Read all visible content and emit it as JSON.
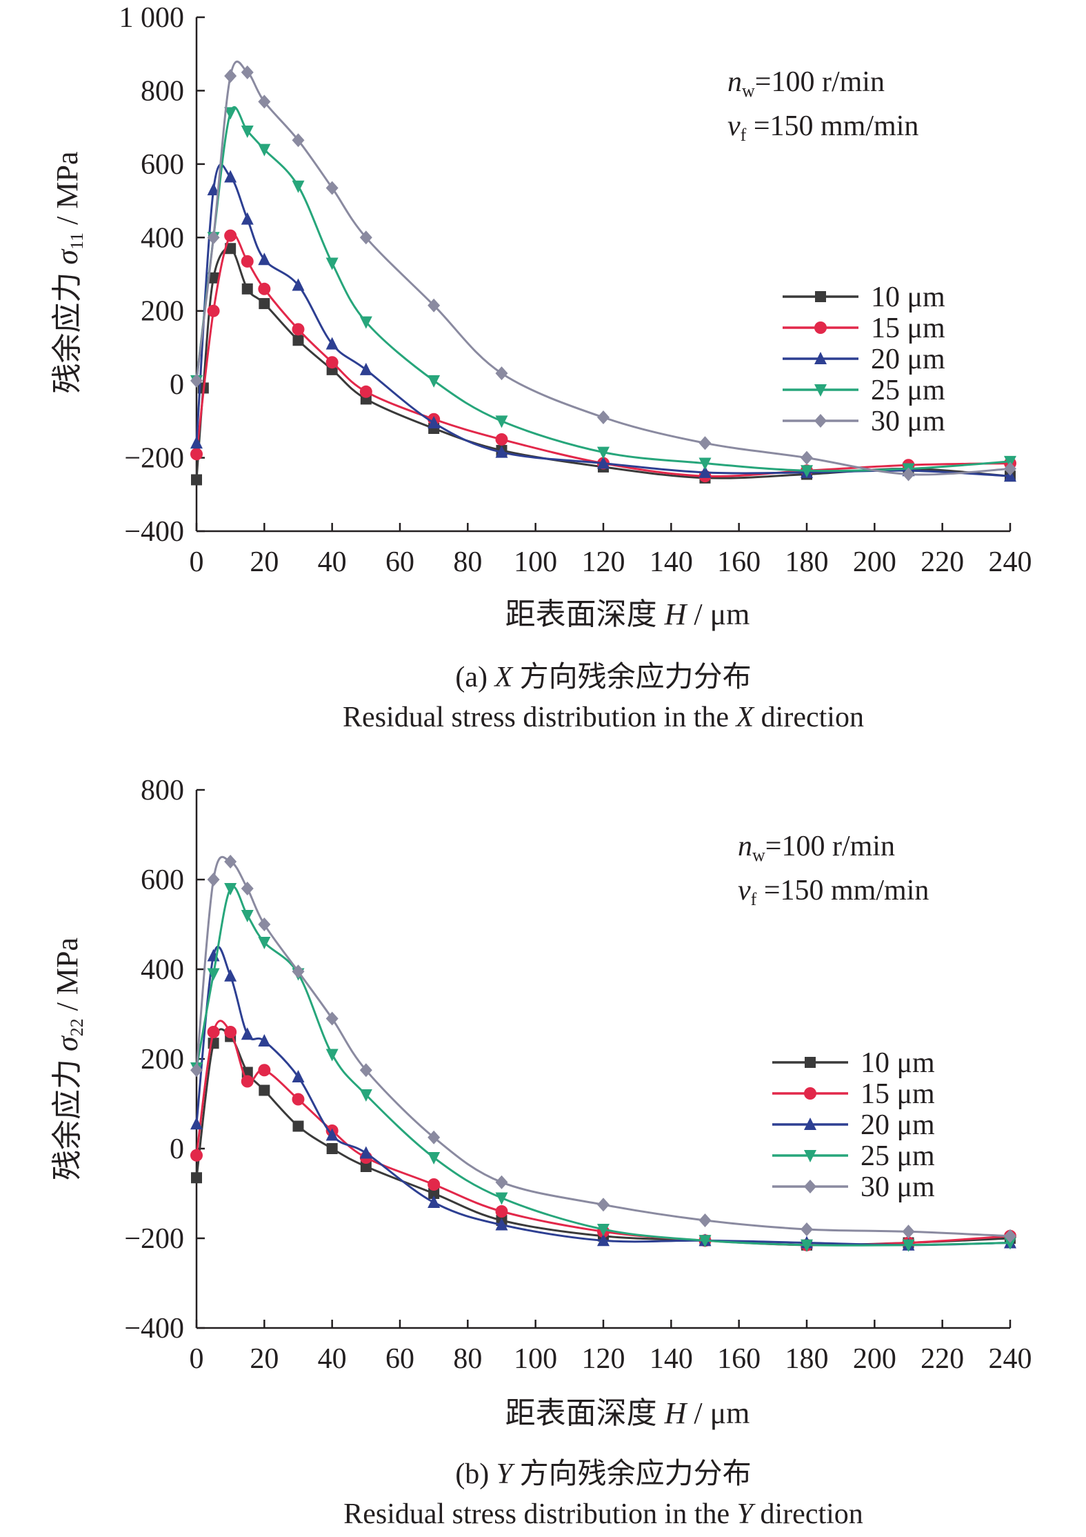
{
  "chart_data": [
    {
      "type": "line",
      "xlabel": "距表面深度",
      "xsymbol": "H",
      "xunit": " / μm",
      "ylabel": "残余应力",
      "ysymbol": "σ",
      "ysub": "11",
      "yunit": " / MPa",
      "xlim": [
        0,
        240
      ],
      "ylim": [
        -400,
        1000
      ],
      "xticks": [
        "0",
        "20",
        "40",
        "60",
        "80",
        "100",
        "120",
        "140",
        "160",
        "180",
        "200",
        "220",
        "240"
      ],
      "yticks": [
        "−400",
        "−200",
        "0",
        "200",
        "400",
        "600",
        "800",
        "1 000"
      ],
      "params": {
        "line1_sym": "n",
        "line1_sub": "w",
        "line1_val": "=100 r/min",
        "line2_sym": "v",
        "line2_sub": "f",
        "line2_val": " =150 mm/min"
      },
      "caption_cn_prefix": "(a) ",
      "caption_cn_sym": "X",
      "caption_cn_rest": " 方向残余应力分布",
      "caption_en_prefix": "Residual stress distribution in the ",
      "caption_en_sym": "X",
      "caption_en_suffix": " direction",
      "series": [
        {
          "name": "10 μm",
          "color": "#3a3a3a",
          "marker": "square",
          "x": [
            0,
            2,
            5,
            10,
            15,
            20,
            30,
            40,
            50,
            70,
            90,
            120,
            150,
            180,
            210,
            240
          ],
          "y": [
            -260,
            -10,
            290,
            370,
            260,
            220,
            120,
            40,
            -40,
            -120,
            -180,
            -225,
            -255,
            -245,
            -230,
            -250
          ]
        },
        {
          "name": "15 μm",
          "color": "#e2284a",
          "marker": "circle",
          "x": [
            0,
            5,
            10,
            15,
            20,
            30,
            40,
            50,
            70,
            90,
            120,
            150,
            180,
            210,
            240
          ],
          "y": [
            -190,
            200,
            405,
            335,
            260,
            150,
            60,
            -20,
            -95,
            -150,
            -215,
            -250,
            -235,
            -220,
            -215
          ]
        },
        {
          "name": "20 μm",
          "color": "#2d3f92",
          "marker": "triangle",
          "x": [
            0,
            5,
            10,
            15,
            20,
            30,
            40,
            50,
            70,
            90,
            120,
            150,
            180,
            210,
            240
          ],
          "y": [
            -160,
            530,
            565,
            450,
            340,
            270,
            110,
            40,
            -105,
            -185,
            -215,
            -240,
            -240,
            -235,
            -250
          ]
        },
        {
          "name": "25 μm",
          "color": "#27a67b",
          "marker": "triangle-down",
          "x": [
            0,
            5,
            10,
            15,
            20,
            30,
            40,
            50,
            70,
            90,
            120,
            150,
            180,
            210,
            240
          ],
          "y": [
            10,
            400,
            740,
            690,
            640,
            540,
            330,
            170,
            10,
            -100,
            -185,
            -215,
            -235,
            -230,
            -210
          ]
        },
        {
          "name": "30 μm",
          "color": "#8a8aa0",
          "marker": "diamond",
          "x": [
            0,
            5,
            10,
            15,
            20,
            30,
            40,
            50,
            70,
            90,
            120,
            150,
            180,
            210,
            240
          ],
          "y": [
            10,
            400,
            840,
            850,
            770,
            665,
            535,
            400,
            215,
            30,
            -90,
            -160,
            -200,
            -245,
            -230
          ]
        }
      ]
    },
    {
      "type": "line",
      "xlabel": "距表面深度",
      "xsymbol": "H",
      "xunit": " / μm",
      "ylabel": "残余应力",
      "ysymbol": "σ",
      "ysub": "22",
      "yunit": " / MPa",
      "xlim": [
        0,
        240
      ],
      "ylim": [
        -400,
        800
      ],
      "xticks": [
        "0",
        "20",
        "40",
        "60",
        "80",
        "100",
        "120",
        "140",
        "160",
        "180",
        "200",
        "220",
        "240"
      ],
      "yticks": [
        "−400",
        "−200",
        "0",
        "200",
        "400",
        "600",
        "800"
      ],
      "params": {
        "line1_sym": "n",
        "line1_sub": "w",
        "line1_val": "=100 r/min",
        "line2_sym": "v",
        "line2_sub": "f",
        "line2_val": " =150 mm/min"
      },
      "caption_cn_prefix": "(b) ",
      "caption_cn_sym": "Y",
      "caption_cn_rest": " 方向残余应力分布",
      "caption_en_prefix": "Residual stress distribution in the ",
      "caption_en_sym": "Y",
      "caption_en_suffix": " direction",
      "series": [
        {
          "name": "10 μm",
          "color": "#3a3a3a",
          "marker": "square",
          "x": [
            0,
            5,
            10,
            15,
            20,
            30,
            40,
            50,
            70,
            90,
            120,
            150,
            180,
            210,
            240
          ],
          "y": [
            -65,
            235,
            250,
            170,
            130,
            50,
            0,
            -40,
            -100,
            -160,
            -195,
            -205,
            -215,
            -210,
            -200
          ]
        },
        {
          "name": "15 μm",
          "color": "#e2284a",
          "marker": "circle",
          "x": [
            0,
            5,
            10,
            15,
            20,
            30,
            40,
            50,
            70,
            90,
            120,
            150,
            180,
            210,
            240
          ],
          "y": [
            -15,
            260,
            260,
            150,
            175,
            110,
            40,
            -20,
            -80,
            -140,
            -185,
            -205,
            -215,
            -210,
            -195
          ]
        },
        {
          "name": "20 μm",
          "color": "#2d3f92",
          "marker": "triangle",
          "x": [
            0,
            5,
            10,
            15,
            20,
            30,
            40,
            50,
            70,
            90,
            120,
            150,
            180,
            210,
            240
          ],
          "y": [
            55,
            430,
            385,
            255,
            240,
            160,
            30,
            -10,
            -120,
            -170,
            -205,
            -205,
            -210,
            -215,
            -210
          ]
        },
        {
          "name": "25 μm",
          "color": "#27a67b",
          "marker": "triangle-down",
          "x": [
            0,
            5,
            10,
            15,
            20,
            30,
            40,
            50,
            70,
            90,
            120,
            150,
            180,
            210,
            240
          ],
          "y": [
            180,
            390,
            580,
            520,
            460,
            390,
            210,
            120,
            -20,
            -110,
            -180,
            -205,
            -215,
            -215,
            -210
          ]
        },
        {
          "name": "30 μm",
          "color": "#8a8aa0",
          "marker": "diamond",
          "x": [
            0,
            5,
            10,
            15,
            20,
            30,
            40,
            50,
            70,
            90,
            120,
            150,
            180,
            210,
            240
          ],
          "y": [
            175,
            600,
            640,
            580,
            500,
            395,
            290,
            175,
            25,
            -75,
            -125,
            -160,
            -180,
            -185,
            -195
          ]
        }
      ]
    }
  ]
}
